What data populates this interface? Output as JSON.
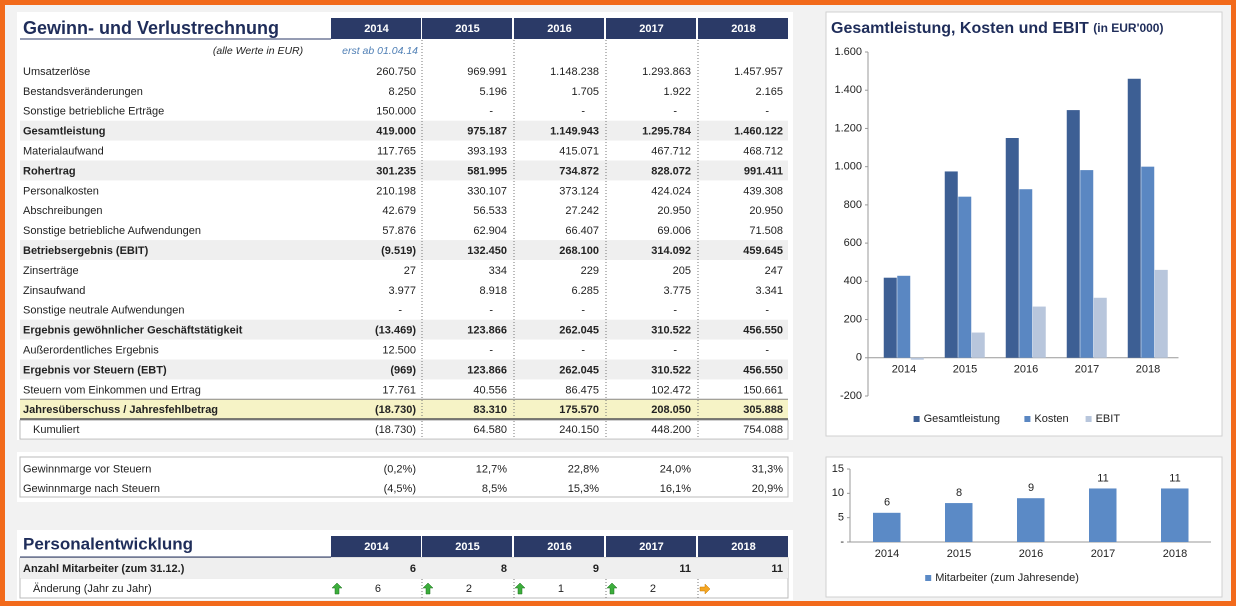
{
  "pl": {
    "title": "Gewinn- und Verlustrechnung",
    "years": [
      "2014",
      "2015",
      "2016",
      "2017",
      "2018"
    ],
    "note": "(alle Werte in EUR)",
    "note_2014": "erst ab 01.04.14",
    "rows": [
      {
        "label": "Umsatzerlöse",
        "values": [
          "260.750",
          "969.991",
          "1.148.238",
          "1.293.863",
          "1.457.957"
        ]
      },
      {
        "label": "Bestandsveränderungen",
        "values": [
          "8.250",
          "5.196",
          "1.705",
          "1.922",
          "2.165"
        ]
      },
      {
        "label": "Sonstige betriebliche Erträge",
        "values": [
          "150.000",
          "-",
          "-",
          "-",
          "-"
        ]
      },
      {
        "label": "Gesamtleistung",
        "values": [
          "419.000",
          "975.187",
          "1.149.943",
          "1.295.784",
          "1.460.122"
        ],
        "bold": true
      },
      {
        "label": "Materialaufwand",
        "values": [
          "117.765",
          "393.193",
          "415.071",
          "467.712",
          "468.712"
        ]
      },
      {
        "label": "Rohertrag",
        "values": [
          "301.235",
          "581.995",
          "734.872",
          "828.072",
          "991.411"
        ],
        "bold": true
      },
      {
        "label": "Personalkosten",
        "values": [
          "210.198",
          "330.107",
          "373.124",
          "424.024",
          "439.308"
        ]
      },
      {
        "label": "Abschreibungen",
        "values": [
          "42.679",
          "56.533",
          "27.242",
          "20.950",
          "20.950"
        ]
      },
      {
        "label": "Sonstige betriebliche Aufwendungen",
        "values": [
          "57.876",
          "62.904",
          "66.407",
          "69.006",
          "71.508"
        ]
      },
      {
        "label": "Betriebsergebnis (EBIT)",
        "values": [
          "(9.519)",
          "132.450",
          "268.100",
          "314.092",
          "459.645"
        ],
        "bold": true
      },
      {
        "label": "Zinserträge",
        "values": [
          "27",
          "334",
          "229",
          "205",
          "247"
        ]
      },
      {
        "label": "Zinsaufwand",
        "values": [
          "3.977",
          "8.918",
          "6.285",
          "3.775",
          "3.341"
        ]
      },
      {
        "label": "Sonstige neutrale Aufwendungen",
        "values": [
          "-",
          "-",
          "-",
          "-",
          "-"
        ]
      },
      {
        "label": "Ergebnis gewöhnlicher Geschäftstätigkeit",
        "values": [
          "(13.469)",
          "123.866",
          "262.045",
          "310.522",
          "456.550"
        ],
        "bold": true
      },
      {
        "label": "Außerordentliches Ergebnis",
        "values": [
          "12.500",
          "-",
          "-",
          "-",
          "-"
        ]
      },
      {
        "label": "Ergebnis vor Steuern (EBT)",
        "values": [
          "(969)",
          "123.866",
          "262.045",
          "310.522",
          "456.550"
        ],
        "bold": true
      },
      {
        "label": "Steuern vom Einkommen und Ertrag",
        "values": [
          "17.761",
          "40.556",
          "86.475",
          "102.472",
          "150.661"
        ]
      },
      {
        "label": "Jahresüberschuss / Jahresfehlbetrag",
        "values": [
          "(18.730)",
          "83.310",
          "175.570",
          "208.050",
          "305.888"
        ],
        "bold": true,
        "highlight": true
      },
      {
        "label": "Kumuliert",
        "values": [
          "(18.730)",
          "64.580",
          "240.150",
          "448.200",
          "754.088"
        ],
        "indent": true
      }
    ]
  },
  "margins": {
    "rows": [
      {
        "label": "Gewinnmarge vor Steuern",
        "values": [
          "(0,2%)",
          "12,7%",
          "22,8%",
          "24,0%",
          "31,3%"
        ]
      },
      {
        "label": "Gewinnmarge nach Steuern",
        "values": [
          "(4,5%)",
          "8,5%",
          "15,3%",
          "16,1%",
          "20,9%"
        ]
      }
    ]
  },
  "staff": {
    "title": "Personalentwicklung",
    "years": [
      "2014",
      "2015",
      "2016",
      "2017",
      "2018"
    ],
    "rows": [
      {
        "label": "Anzahl Mitarbeiter (zum 31.12.)",
        "values": [
          "6",
          "8",
          "9",
          "11",
          "11"
        ],
        "bold": true
      },
      {
        "label": "Änderung (Jahr zu Jahr)",
        "values": [
          "6",
          "2",
          "1",
          "2",
          null
        ],
        "indent": true,
        "arrows": true
      }
    ]
  },
  "chart_data": [
    {
      "type": "bar",
      "title": "Gesamtleistung, Kosten und EBIT",
      "title_unit": "(in EUR'000)",
      "categories": [
        "2014",
        "2015",
        "2016",
        "2017",
        "2018"
      ],
      "series": [
        {
          "name": "Gesamtleistung",
          "color": "#3d5f94",
          "values": [
            419,
            975,
            1150,
            1296,
            1460
          ]
        },
        {
          "name": "Kosten",
          "color": "#5a87c2",
          "values": [
            429,
            843,
            882,
            982,
            1000
          ]
        },
        {
          "name": "EBIT",
          "color": "#b8c6dc",
          "values": [
            -10,
            132,
            268,
            314,
            460
          ]
        }
      ],
      "ylim": [
        -200,
        1600
      ],
      "yticks": [
        -200,
        0,
        200,
        400,
        600,
        800,
        {
          "value": 1000,
          "label": "1.000"
        },
        {
          "value": 1200,
          "label": "1.200"
        },
        {
          "value": 1400,
          "label": "1.400"
        },
        {
          "value": 1600,
          "label": "1.600"
        }
      ],
      "grid": false,
      "legend": "bottom"
    },
    {
      "type": "bar",
      "categories": [
        "2014",
        "2015",
        "2016",
        "2017",
        "2018"
      ],
      "series": [
        {
          "name": "Mitarbeiter (zum Jahresende)",
          "color": "#5b8ac6",
          "values": [
            6,
            8,
            9,
            11,
            11
          ]
        }
      ],
      "ylim": [
        0,
        15
      ],
      "yticks": [
        {
          "value": 0,
          "label": "-"
        },
        5,
        10,
        15
      ],
      "grid": false,
      "legend": "bottom",
      "data_labels": true
    }
  ]
}
